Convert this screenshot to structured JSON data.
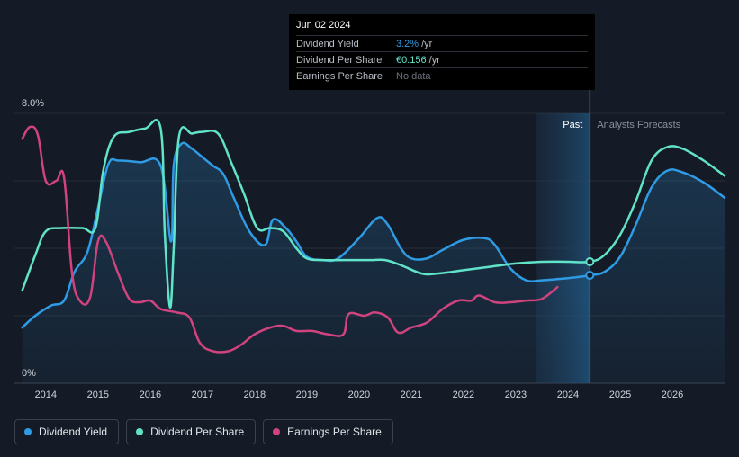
{
  "tooltip": {
    "date": "Jun 02 2024",
    "rows": [
      {
        "label": "Dividend Yield",
        "value": "3.2%",
        "unit": "/yr"
      },
      {
        "label": "Dividend Per Share",
        "value": "€0.156",
        "unit": "/yr"
      },
      {
        "label": "Earnings Per Share",
        "value": "No data",
        "unit": ""
      }
    ]
  },
  "legend": [
    {
      "label": "Dividend Yield",
      "color": "#2f9be5"
    },
    {
      "label": "Dividend Per Share",
      "color": "#60e3c9"
    },
    {
      "label": "Earnings Per Share",
      "color": "#d0437e"
    }
  ],
  "chart_data": {
    "type": "line",
    "y_ticks": [
      "8.0%",
      "0%"
    ],
    "ylim": [
      0,
      8
    ],
    "xlim": [
      2013.4,
      2027.0
    ],
    "x_tick_labels": [
      "2014",
      "2015",
      "2016",
      "2017",
      "2018",
      "2019",
      "2020",
      "2021",
      "2022",
      "2023",
      "2024",
      "2025",
      "2026"
    ],
    "x_ticks": [
      2014,
      2015,
      2016,
      2017,
      2018,
      2019,
      2020,
      2021,
      2022,
      2023,
      2024,
      2025,
      2026
    ],
    "region_labels": {
      "past": "Past",
      "forecast": "Analysts Forecasts"
    },
    "past_start": 2023.4,
    "now": 2024.42,
    "series": [
      {
        "name": "Dividend Yield",
        "color": "#2f9be5",
        "fill": true,
        "points": [
          [
            2013.55,
            1.65
          ],
          [
            2013.8,
            2.0
          ],
          [
            2014.1,
            2.3
          ],
          [
            2014.35,
            2.45
          ],
          [
            2014.55,
            3.3
          ],
          [
            2014.8,
            3.9
          ],
          [
            2015.0,
            5.2
          ],
          [
            2015.2,
            6.5
          ],
          [
            2015.4,
            6.6
          ],
          [
            2015.8,
            6.55
          ],
          [
            2016.2,
            6.45
          ],
          [
            2016.4,
            4.2
          ],
          [
            2016.45,
            6.45
          ],
          [
            2016.6,
            7.1
          ],
          [
            2016.8,
            6.95
          ],
          [
            2017.0,
            6.7
          ],
          [
            2017.2,
            6.45
          ],
          [
            2017.4,
            6.2
          ],
          [
            2017.6,
            5.5
          ],
          [
            2017.9,
            4.5
          ],
          [
            2018.2,
            4.1
          ],
          [
            2018.35,
            4.85
          ],
          [
            2018.6,
            4.6
          ],
          [
            2018.8,
            4.2
          ],
          [
            2019.0,
            3.75
          ],
          [
            2019.3,
            3.65
          ],
          [
            2019.6,
            3.7
          ],
          [
            2020.0,
            4.3
          ],
          [
            2020.35,
            4.9
          ],
          [
            2020.55,
            4.7
          ],
          [
            2020.8,
            4.0
          ],
          [
            2021.0,
            3.7
          ],
          [
            2021.3,
            3.7
          ],
          [
            2021.6,
            3.95
          ],
          [
            2022.0,
            4.25
          ],
          [
            2022.4,
            4.3
          ],
          [
            2022.6,
            4.1
          ],
          [
            2022.9,
            3.4
          ],
          [
            2023.2,
            3.05
          ],
          [
            2023.5,
            3.05
          ],
          [
            2023.9,
            3.1
          ],
          [
            2024.2,
            3.15
          ],
          [
            2024.42,
            3.2
          ],
          [
            2024.7,
            3.3
          ],
          [
            2025.0,
            3.75
          ],
          [
            2025.3,
            4.7
          ],
          [
            2025.6,
            5.8
          ],
          [
            2025.9,
            6.3
          ],
          [
            2026.2,
            6.25
          ],
          [
            2026.6,
            5.95
          ],
          [
            2027.0,
            5.5
          ]
        ]
      },
      {
        "name": "Dividend Per Share",
        "color": "#60e3c9",
        "fill": false,
        "points": [
          [
            2013.55,
            2.75
          ],
          [
            2013.8,
            3.8
          ],
          [
            2014.0,
            4.5
          ],
          [
            2014.3,
            4.6
          ],
          [
            2014.7,
            4.6
          ],
          [
            2014.95,
            4.6
          ],
          [
            2015.1,
            6.3
          ],
          [
            2015.3,
            7.3
          ],
          [
            2015.6,
            7.45
          ],
          [
            2015.9,
            7.55
          ],
          [
            2016.2,
            7.55
          ],
          [
            2016.28,
            4.4
          ],
          [
            2016.38,
            2.25
          ],
          [
            2016.45,
            4.0
          ],
          [
            2016.55,
            7.3
          ],
          [
            2016.8,
            7.4
          ],
          [
            2017.0,
            7.45
          ],
          [
            2017.3,
            7.4
          ],
          [
            2017.55,
            6.55
          ],
          [
            2017.8,
            5.6
          ],
          [
            2018.05,
            4.6
          ],
          [
            2018.3,
            4.6
          ],
          [
            2018.55,
            4.5
          ],
          [
            2018.8,
            4.0
          ],
          [
            2019.0,
            3.7
          ],
          [
            2019.3,
            3.65
          ],
          [
            2019.7,
            3.65
          ],
          [
            2020.2,
            3.65
          ],
          [
            2020.5,
            3.65
          ],
          [
            2020.8,
            3.5
          ],
          [
            2021.2,
            3.25
          ],
          [
            2021.5,
            3.25
          ],
          [
            2022.0,
            3.35
          ],
          [
            2022.5,
            3.45
          ],
          [
            2023.0,
            3.55
          ],
          [
            2023.5,
            3.6
          ],
          [
            2024.0,
            3.6
          ],
          [
            2024.42,
            3.6
          ],
          [
            2024.7,
            3.8
          ],
          [
            2025.0,
            4.4
          ],
          [
            2025.3,
            5.4
          ],
          [
            2025.6,
            6.6
          ],
          [
            2025.9,
            7.0
          ],
          [
            2026.2,
            6.95
          ],
          [
            2026.6,
            6.6
          ],
          [
            2027.0,
            6.15
          ]
        ]
      },
      {
        "name": "Earnings Per Share",
        "color": "#d0437e",
        "fill": false,
        "points": [
          [
            2013.55,
            7.25
          ],
          [
            2013.7,
            7.6
          ],
          [
            2013.85,
            7.35
          ],
          [
            2014.0,
            6.0
          ],
          [
            2014.2,
            6.0
          ],
          [
            2014.35,
            6.1
          ],
          [
            2014.5,
            3.3
          ],
          [
            2014.65,
            2.45
          ],
          [
            2014.85,
            2.55
          ],
          [
            2015.0,
            4.2
          ],
          [
            2015.15,
            4.2
          ],
          [
            2015.4,
            3.2
          ],
          [
            2015.6,
            2.5
          ],
          [
            2015.8,
            2.4
          ],
          [
            2016.0,
            2.45
          ],
          [
            2016.2,
            2.2
          ],
          [
            2016.5,
            2.1
          ],
          [
            2016.75,
            1.95
          ],
          [
            2016.95,
            1.2
          ],
          [
            2017.2,
            0.95
          ],
          [
            2017.5,
            0.95
          ],
          [
            2017.75,
            1.15
          ],
          [
            2018.0,
            1.45
          ],
          [
            2018.3,
            1.65
          ],
          [
            2018.55,
            1.7
          ],
          [
            2018.8,
            1.55
          ],
          [
            2019.1,
            1.55
          ],
          [
            2019.4,
            1.45
          ],
          [
            2019.7,
            1.45
          ],
          [
            2019.8,
            2.05
          ],
          [
            2020.1,
            2.0
          ],
          [
            2020.3,
            2.1
          ],
          [
            2020.55,
            1.95
          ],
          [
            2020.75,
            1.5
          ],
          [
            2021.0,
            1.65
          ],
          [
            2021.3,
            1.8
          ],
          [
            2021.6,
            2.2
          ],
          [
            2021.9,
            2.45
          ],
          [
            2022.15,
            2.45
          ],
          [
            2022.3,
            2.6
          ],
          [
            2022.6,
            2.4
          ],
          [
            2022.9,
            2.4
          ],
          [
            2023.2,
            2.45
          ],
          [
            2023.5,
            2.5
          ],
          [
            2023.8,
            2.85
          ]
        ]
      }
    ]
  }
}
